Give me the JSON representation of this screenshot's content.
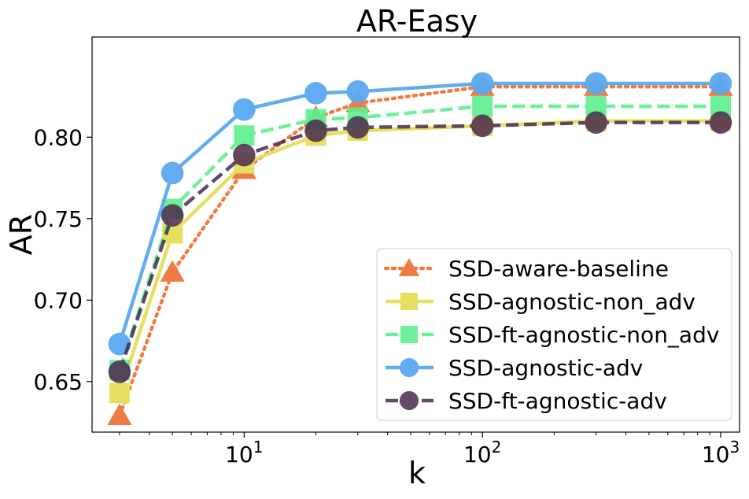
{
  "chart_data": {
    "type": "line",
    "title": "AR-Easy",
    "xlabel": "k",
    "ylabel": "AR",
    "xscale": "log",
    "xlim": [
      2.3,
      1200
    ],
    "ylim": [
      0.619,
      0.8615
    ],
    "grid": false,
    "legend_position": "lower-right",
    "x": [
      3,
      5,
      10,
      20,
      30,
      100,
      300,
      1000
    ],
    "x_ticks": [
      {
        "value": 10,
        "label": "10",
        "exp": "1"
      },
      {
        "value": 100,
        "label": "10",
        "exp": "2"
      },
      {
        "value": 1000,
        "label": "10",
        "exp": "3"
      }
    ],
    "y_ticks": [
      {
        "value": 0.65,
        "label": "0.65"
      },
      {
        "value": 0.7,
        "label": "0.70"
      },
      {
        "value": 0.75,
        "label": "0.75"
      },
      {
        "value": 0.8,
        "label": "0.80"
      }
    ],
    "series": [
      {
        "name": "SSD-aware-baseline",
        "color": "#f07c45",
        "marker": "triangle",
        "dash": "dotted",
        "width": 4.5,
        "opacity": 1.0,
        "values": [
          0.629,
          0.717,
          0.78,
          0.812,
          0.821,
          0.831,
          0.831,
          0.831
        ]
      },
      {
        "name": "SSD-agnostic-non_adv",
        "color": "#e5e060",
        "marker": "square",
        "dash": "solid",
        "width": 4.5,
        "opacity": 1.0,
        "values": [
          0.643,
          0.741,
          0.784,
          0.801,
          0.804,
          0.807,
          0.81,
          0.81
        ]
      },
      {
        "name": "SSD-ft-agnostic-non_adv",
        "color": "#5df08f",
        "marker": "square",
        "dash": "dashed",
        "width": 4.5,
        "opacity": 0.9,
        "values": [
          0.657,
          0.756,
          0.801,
          0.811,
          0.812,
          0.819,
          0.819,
          0.819
        ]
      },
      {
        "name": "SSD-agnostic-adv",
        "color": "#5aa9f2",
        "marker": "circle",
        "dash": "solid",
        "width": 4.5,
        "opacity": 0.95,
        "values": [
          0.673,
          0.778,
          0.817,
          0.827,
          0.828,
          0.833,
          0.833,
          0.833
        ]
      },
      {
        "name": "SSD-ft-agnostic-adv",
        "color": "#4a2a4f",
        "marker": "circle",
        "dash": "dashed",
        "width": 4.5,
        "opacity": 0.85,
        "values": [
          0.656,
          0.752,
          0.789,
          0.804,
          0.806,
          0.807,
          0.809,
          0.809
        ]
      }
    ]
  }
}
